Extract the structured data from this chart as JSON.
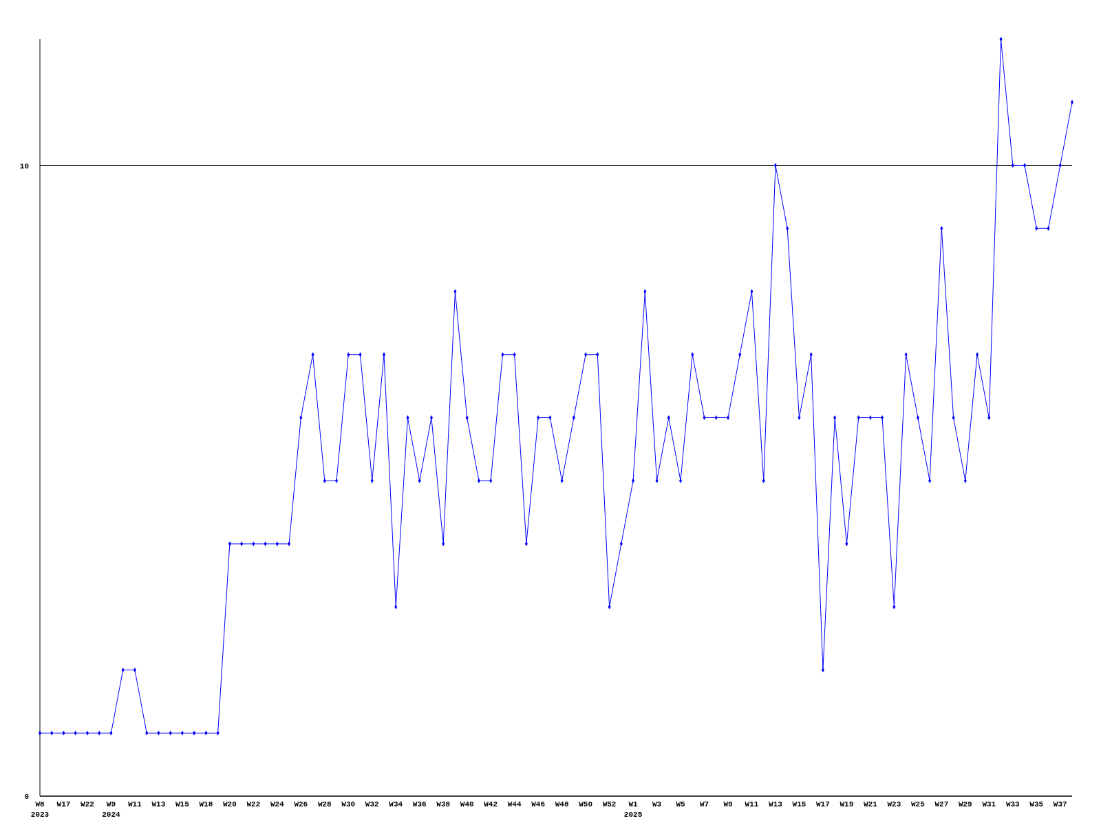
{
  "chart_data": {
    "type": "line",
    "categories": [
      "W8\n2023",
      null,
      "W17",
      null,
      "W22",
      null,
      "W9\n2024",
      null,
      "W11",
      null,
      "W13",
      null,
      "W15",
      null,
      "W18",
      null,
      "W20",
      null,
      "W22",
      null,
      "W24",
      null,
      "W26",
      null,
      "W28",
      null,
      "W30",
      null,
      "W32",
      null,
      "W34",
      null,
      "W36",
      null,
      "W38",
      null,
      "W40",
      null,
      "W42",
      null,
      "W44",
      null,
      "W46",
      null,
      "W48",
      null,
      "W50",
      null,
      "W52",
      null,
      "W1\n2025",
      null,
      "W3",
      null,
      "W5",
      null,
      "W7",
      null,
      "W9",
      null,
      "W11",
      null,
      "W13",
      null,
      "W15",
      null,
      "W17",
      null,
      "W19",
      null,
      "W21",
      null,
      "W23",
      null,
      "W25",
      null,
      "W27",
      null,
      "W29",
      null,
      "W31",
      null,
      "W33",
      null,
      "W35",
      null,
      "W37",
      null
    ],
    "series": [
      {
        "color": "#0000ff",
        "values": [
          1,
          1,
          1,
          1,
          1,
          1,
          1,
          2,
          2,
          1,
          1,
          1,
          1,
          1,
          1,
          1,
          4,
          4,
          4,
          4,
          4,
          4,
          6,
          7,
          5,
          5,
          7,
          7,
          5,
          7,
          3,
          6,
          5,
          6,
          4,
          8,
          6,
          5,
          5,
          7,
          7,
          4,
          6,
          6,
          5,
          6,
          7,
          7,
          3,
          4,
          5,
          8,
          5,
          6,
          5,
          7,
          6,
          6,
          6,
          7,
          8,
          5,
          10,
          9,
          6,
          7,
          2,
          6,
          4,
          6,
          6,
          6,
          3,
          7,
          6,
          5,
          9,
          6,
          5,
          7,
          6,
          12,
          10,
          10,
          9,
          9,
          10,
          11
        ]
      }
    ],
    "ylim": [
      0,
      12
    ],
    "yticks": [
      0,
      10
    ],
    "grid": "y",
    "marker": "diamond",
    "line_style": "solid"
  }
}
